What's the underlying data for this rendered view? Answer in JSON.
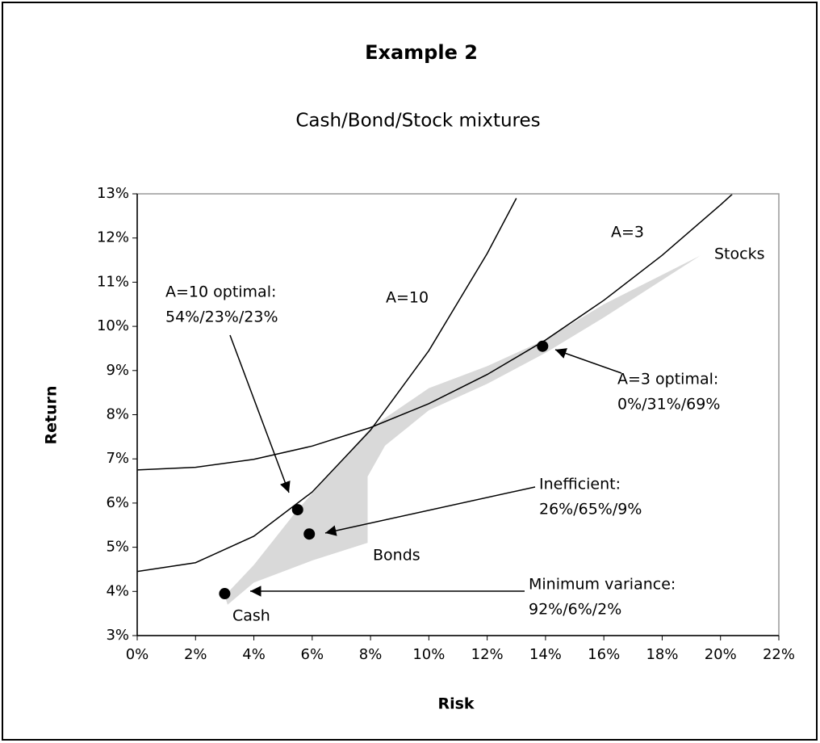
{
  "chart_data": {
    "type": "scatter",
    "title": "Example 2",
    "subtitle": "Cash/Bond/Stock mixtures",
    "x_label": "Risk",
    "y_label": "Return",
    "xlim": [
      0,
      22
    ],
    "ylim": [
      3,
      13
    ],
    "xticks": [
      {
        "value": 0,
        "label": "0%"
      },
      {
        "value": 2,
        "label": "2%"
      },
      {
        "value": 4,
        "label": "4%"
      },
      {
        "value": 6,
        "label": "6%"
      },
      {
        "value": 8,
        "label": "8%"
      },
      {
        "value": 10,
        "label": "10%"
      },
      {
        "value": 12,
        "label": "12%"
      },
      {
        "value": 14,
        "label": "14%"
      },
      {
        "value": 16,
        "label": "16%"
      },
      {
        "value": 18,
        "label": "18%"
      },
      {
        "value": 20,
        "label": "20%"
      },
      {
        "value": 22,
        "label": "22%"
      }
    ],
    "yticks": [
      {
        "value": 3,
        "label": "3%"
      },
      {
        "value": 4,
        "label": "4%"
      },
      {
        "value": 5,
        "label": "5%"
      },
      {
        "value": 6,
        "label": "6%"
      },
      {
        "value": 7,
        "label": "7%"
      },
      {
        "value": 8,
        "label": "8%"
      },
      {
        "value": 9,
        "label": "9%"
      },
      {
        "value": 10,
        "label": "10%"
      },
      {
        "value": 11,
        "label": "11%"
      },
      {
        "value": 12,
        "label": "12%"
      },
      {
        "value": 13,
        "label": "13%"
      }
    ],
    "points": {
      "color": "#000000",
      "x": [
        5.5,
        13.9,
        5.9,
        3.0
      ],
      "values": [
        5.85,
        9.55,
        5.3,
        3.95
      ]
    },
    "curves": [
      {
        "name": "A=3",
        "color": "#000000",
        "x": [
          0,
          2,
          4,
          6,
          8,
          10,
          12,
          14,
          16,
          18,
          20,
          20.4
        ],
        "values": [
          6.75,
          6.81,
          6.99,
          7.29,
          7.71,
          8.25,
          8.91,
          9.69,
          10.59,
          11.61,
          12.75,
          12.99
        ]
      },
      {
        "name": "A=10",
        "color": "#000000",
        "x": [
          0,
          2,
          4,
          6,
          8,
          10,
          12,
          13
        ],
        "values": [
          4.45,
          4.65,
          5.25,
          6.25,
          7.65,
          9.45,
          11.65,
          12.9
        ]
      }
    ],
    "region": {
      "color": "#d9d9d9",
      "x": [
        3.0,
        4,
        5.5,
        8,
        10,
        12,
        14,
        16,
        19.3,
        16,
        14,
        12,
        10,
        8.5,
        7.9,
        7.9,
        6,
        4,
        3.1
      ],
      "values": [
        3.9,
        4.6,
        5.85,
        7.7,
        8.6,
        9.1,
        9.7,
        10.5,
        11.6,
        10.2,
        9.4,
        8.7,
        8.1,
        7.3,
        6.6,
        5.1,
        4.7,
        4.2,
        3.7
      ]
    },
    "annotations": [
      [
        "A=10 optimal:",
        "54%/23%/23%"
      ],
      [
        "A=3 optimal:",
        "0%/31%/69%"
      ],
      [
        "Inefficient:",
        "26%/65%/9%"
      ],
      [
        "Minimum variance:",
        "92%/6%/2%"
      ]
    ],
    "labels": [
      "Stocks",
      "Bonds",
      "Cash"
    ]
  }
}
